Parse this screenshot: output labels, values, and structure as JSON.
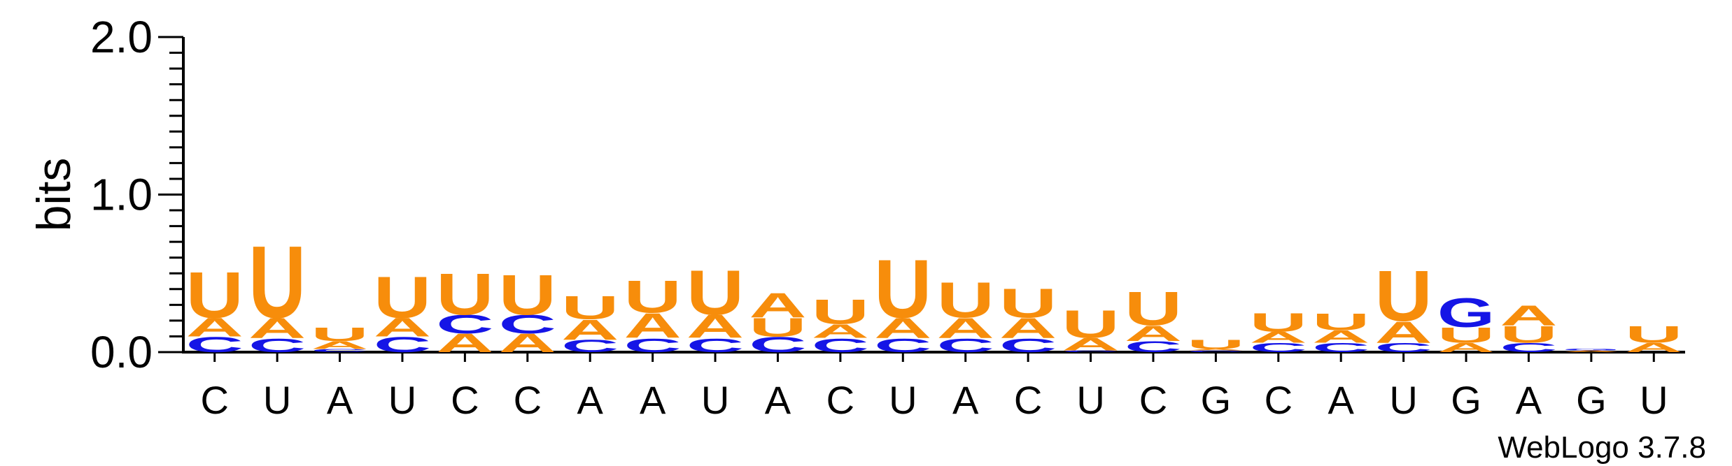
{
  "chart_data": {
    "type": "sequence-logo",
    "ylabel": "bits",
    "ylim": [
      0,
      2.0
    ],
    "y_ticks": [
      "0.0",
      "1.0",
      "2.0"
    ],
    "x_labels": [
      "C",
      "U",
      "A",
      "U",
      "C",
      "C",
      "A",
      "A",
      "U",
      "A",
      "C",
      "U",
      "A",
      "C",
      "U",
      "C",
      "G",
      "C",
      "A",
      "U",
      "G",
      "A",
      "G",
      "U"
    ],
    "colors": {
      "A": "#f78d0b",
      "U": "#f78d0b",
      "C": "#1515e6",
      "G": "#1515e6"
    },
    "positions": [
      [
        {
          "letter": "C",
          "height": 0.1
        },
        {
          "letter": "A",
          "height": 0.12
        },
        {
          "letter": "U",
          "height": 0.3
        }
      ],
      [
        {
          "letter": "C",
          "height": 0.09
        },
        {
          "letter": "A",
          "height": 0.13
        },
        {
          "letter": "U",
          "height": 0.47
        }
      ],
      [
        {
          "letter": "C",
          "height": 0.02
        },
        {
          "letter": "A",
          "height": 0.05
        },
        {
          "letter": "U",
          "height": 0.09
        }
      ],
      [
        {
          "letter": "C",
          "height": 0.1
        },
        {
          "letter": "A",
          "height": 0.12
        },
        {
          "letter": "U",
          "height": 0.27
        }
      ],
      [
        {
          "letter": "A",
          "height": 0.12
        },
        {
          "letter": "C",
          "height": 0.12
        },
        {
          "letter": "U",
          "height": 0.27
        }
      ],
      [
        {
          "letter": "A",
          "height": 0.12
        },
        {
          "letter": "C",
          "height": 0.12
        },
        {
          "letter": "U",
          "height": 0.26
        }
      ],
      [
        {
          "letter": "C",
          "height": 0.08
        },
        {
          "letter": "A",
          "height": 0.13
        },
        {
          "letter": "U",
          "height": 0.15
        }
      ],
      [
        {
          "letter": "C",
          "height": 0.09
        },
        {
          "letter": "A",
          "height": 0.16
        },
        {
          "letter": "U",
          "height": 0.21
        }
      ],
      [
        {
          "letter": "C",
          "height": 0.09
        },
        {
          "letter": "A",
          "height": 0.15
        },
        {
          "letter": "U",
          "height": 0.29
        }
      ],
      [
        {
          "letter": "C",
          "height": 0.1
        },
        {
          "letter": "U",
          "height": 0.12
        },
        {
          "letter": "A",
          "height": 0.16
        }
      ],
      [
        {
          "letter": "C",
          "height": 0.09
        },
        {
          "letter": "A",
          "height": 0.09
        },
        {
          "letter": "U",
          "height": 0.16
        }
      ],
      [
        {
          "letter": "C",
          "height": 0.09
        },
        {
          "letter": "A",
          "height": 0.13
        },
        {
          "letter": "U",
          "height": 0.38
        }
      ],
      [
        {
          "letter": "C",
          "height": 0.09
        },
        {
          "letter": "A",
          "height": 0.13
        },
        {
          "letter": "U",
          "height": 0.23
        }
      ],
      [
        {
          "letter": "C",
          "height": 0.09
        },
        {
          "letter": "A",
          "height": 0.13
        },
        {
          "letter": "U",
          "height": 0.19
        }
      ],
      [
        {
          "letter": "C",
          "height": 0.01
        },
        {
          "letter": "A",
          "height": 0.08
        },
        {
          "letter": "U",
          "height": 0.18
        }
      ],
      [
        {
          "letter": "C",
          "height": 0.07
        },
        {
          "letter": "A",
          "height": 0.1
        },
        {
          "letter": "U",
          "height": 0.22
        }
      ],
      [
        {
          "letter": "C",
          "height": 0.01
        },
        {
          "letter": "A",
          "height": 0.01
        },
        {
          "letter": "U",
          "height": 0.06
        }
      ],
      [
        {
          "letter": "C",
          "height": 0.06
        },
        {
          "letter": "A",
          "height": 0.07
        },
        {
          "letter": "U",
          "height": 0.12
        }
      ],
      [
        {
          "letter": "C",
          "height": 0.06
        },
        {
          "letter": "A",
          "height": 0.08
        },
        {
          "letter": "U",
          "height": 0.11
        }
      ],
      [
        {
          "letter": "C",
          "height": 0.06
        },
        {
          "letter": "A",
          "height": 0.14
        },
        {
          "letter": "U",
          "height": 0.33
        }
      ],
      [
        {
          "letter": "A",
          "height": 0.06
        },
        {
          "letter": "U",
          "height": 0.1
        },
        {
          "letter": "G",
          "height": 0.19
        }
      ],
      [
        {
          "letter": "C",
          "height": 0.06
        },
        {
          "letter": "U",
          "height": 0.11
        },
        {
          "letter": "A",
          "height": 0.13
        }
      ],
      [
        {
          "letter": "A",
          "height": 0.01
        },
        {
          "letter": "G",
          "height": 0.01
        }
      ],
      [
        {
          "letter": "A",
          "height": 0.06
        },
        {
          "letter": "U",
          "height": 0.11
        }
      ]
    ]
  },
  "footer": {
    "version_text": "WebLogo 3.7.8"
  }
}
